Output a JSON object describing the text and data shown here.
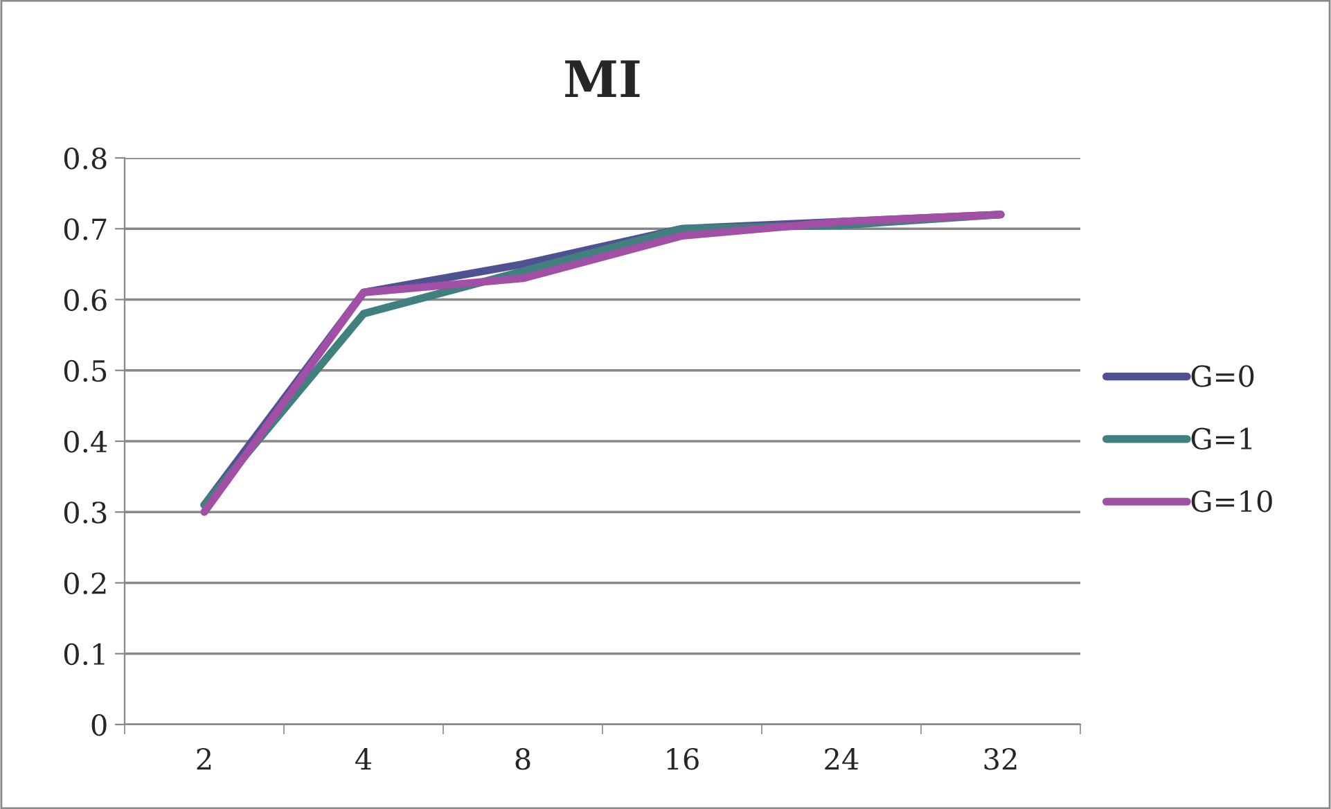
{
  "chart_data": {
    "type": "line",
    "title": "MI",
    "categories": [
      "2",
      "4",
      "8",
      "16",
      "24",
      "32"
    ],
    "series": [
      {
        "name": "G=0",
        "color": "#4f5190",
        "values": [
          0.31,
          0.61,
          0.65,
          0.7,
          0.71,
          0.72
        ]
      },
      {
        "name": "G=1",
        "color": "#40807f",
        "values": [
          0.31,
          0.58,
          0.64,
          0.7,
          0.705,
          0.72
        ]
      },
      {
        "name": "G=10",
        "color": "#a24fa6",
        "values": [
          0.3,
          0.61,
          0.63,
          0.69,
          0.71,
          0.72
        ]
      }
    ],
    "ylim": [
      0,
      0.8
    ],
    "yticks": [
      0,
      0.1,
      0.2,
      0.3,
      0.4,
      0.5,
      0.6,
      0.7,
      0.8
    ],
    "grid": "y",
    "legend": "right",
    "marker": "none",
    "line_style": "solid"
  }
}
